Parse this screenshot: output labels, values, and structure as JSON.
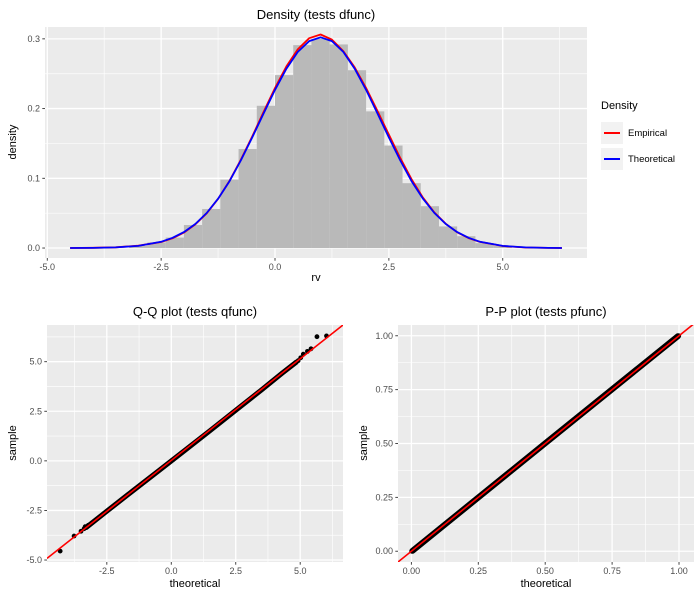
{
  "page": {
    "background": "#ffffff"
  },
  "theme": {
    "panel_bg": "#ebebeb",
    "grid_major": "#ffffff",
    "grid_minor": "#ffffff",
    "tick_color": "#333333",
    "tick_text": "#4d4d4d",
    "title_color": "#000000",
    "point_color": "#000000",
    "legend_key_bg": "#f2f2f2"
  },
  "chart_data": [
    {
      "id": "density",
      "type": "histogram+line",
      "title": "Density (tests dfunc)",
      "xlabel": "rv",
      "ylabel": "density",
      "xlim": [
        -5.05,
        6.85
      ],
      "ylim": [
        -0.0143,
        0.317
      ],
      "grid": true,
      "legend_position": "right",
      "x_ticks": {
        "values": [
          -5.0,
          -2.5,
          0.0,
          2.5,
          5.0
        ],
        "labels": [
          "-5.0",
          "-2.5",
          "0.0",
          "2.5",
          "5.0"
        ],
        "minor": [
          -3.75,
          -1.25,
          1.25,
          3.75,
          6.25
        ]
      },
      "y_ticks": {
        "values": [
          0.0,
          0.1,
          0.2,
          0.3
        ],
        "labels": [
          "0.0",
          "0.1",
          "0.2",
          "0.3"
        ],
        "minor": [
          0.05,
          0.15,
          0.25
        ]
      },
      "histogram": {
        "fill": "#b9b9b9",
        "binwidth": 0.4,
        "centers": [
          -3.0,
          -2.6,
          -2.2,
          -1.8,
          -1.4,
          -1.0,
          -0.6,
          -0.2,
          0.2,
          0.6,
          1.0,
          1.4,
          1.8,
          2.2,
          2.6,
          3.0,
          3.4,
          3.8,
          4.2,
          4.6,
          5.0
        ],
        "heights": [
          0.003,
          0.008,
          0.015,
          0.033,
          0.056,
          0.098,
          0.142,
          0.204,
          0.248,
          0.291,
          0.3,
          0.292,
          0.255,
          0.196,
          0.147,
          0.093,
          0.06,
          0.031,
          0.017,
          0.007,
          0.003
        ]
      },
      "series": [
        {
          "name": "Empirical",
          "color": "#ff0000",
          "x": [
            -4.5,
            -4.0,
            -3.5,
            -3.0,
            -2.5,
            -2.25,
            -2.0,
            -1.75,
            -1.5,
            -1.25,
            -1.0,
            -0.75,
            -0.5,
            -0.25,
            0.0,
            0.25,
            0.5,
            0.75,
            1.0,
            1.25,
            1.5,
            1.75,
            2.0,
            2.25,
            2.5,
            2.75,
            3.0,
            3.25,
            3.5,
            3.75,
            4.0,
            4.25,
            4.5,
            5.0,
            5.5,
            6.0,
            6.3
          ],
          "y": [
            0.0001,
            0.0003,
            0.001,
            0.0033,
            0.0087,
            0.014,
            0.0221,
            0.0339,
            0.0498,
            0.0706,
            0.0963,
            0.1266,
            0.16,
            0.1952,
            0.2295,
            0.2605,
            0.285,
            0.301,
            0.3062,
            0.299,
            0.2824,
            0.259,
            0.2295,
            0.1965,
            0.1625,
            0.129,
            0.0985,
            0.0722,
            0.051,
            0.0347,
            0.0226,
            0.0143,
            0.0088,
            0.0029,
            0.0008,
            0.0002,
            0.0001
          ]
        },
        {
          "name": "Theoretical",
          "color": "#0000ff",
          "x": [
            -4.5,
            -4.0,
            -3.5,
            -3.0,
            -2.5,
            -2.25,
            -2.0,
            -1.75,
            -1.5,
            -1.25,
            -1.0,
            -0.75,
            -0.5,
            -0.25,
            0.0,
            0.25,
            0.5,
            0.75,
            1.0,
            1.25,
            1.5,
            1.75,
            2.0,
            2.25,
            2.5,
            2.75,
            3.0,
            3.25,
            3.5,
            3.75,
            4.0,
            4.25,
            4.5,
            5.0,
            5.5,
            6.0,
            6.3
          ],
          "y": [
            0.0001,
            0.0002,
            0.0009,
            0.0031,
            0.009,
            0.0146,
            0.0228,
            0.0345,
            0.0503,
            0.0707,
            0.0959,
            0.1255,
            0.1585,
            0.193,
            0.2268,
            0.2572,
            0.2813,
            0.2968,
            0.3022,
            0.2968,
            0.2813,
            0.2572,
            0.2268,
            0.193,
            0.1585,
            0.1255,
            0.0959,
            0.0707,
            0.0503,
            0.0345,
            0.0228,
            0.0146,
            0.009,
            0.0031,
            0.0009,
            0.0002,
            0.0001
          ]
        }
      ],
      "legend": {
        "title": "Density",
        "entries": [
          {
            "label": "Empirical",
            "color": "#ff0000"
          },
          {
            "label": "Theoretical",
            "color": "#0000ff"
          }
        ]
      }
    },
    {
      "id": "qq",
      "type": "scatter",
      "title": "Q-Q plot (tests qfunc)",
      "xlabel": "theoretical",
      "ylabel": "sample",
      "xlim": [
        -4.82,
        6.66
      ],
      "ylim": [
        -5.1,
        6.85
      ],
      "grid": true,
      "x_ticks": {
        "values": [
          -2.5,
          0.0,
          2.5,
          5.0
        ],
        "labels": [
          "-2.5",
          "0.0",
          "2.5",
          "5.0"
        ],
        "minor": [
          -3.75,
          -1.25,
          1.25,
          3.75,
          6.25
        ]
      },
      "y_ticks": {
        "values": [
          -5.0,
          -2.5,
          0.0,
          2.5,
          5.0
        ],
        "labels": [
          "-5.0",
          "-2.5",
          "0.0",
          "2.5",
          "5.0"
        ],
        "minor": [
          -3.75,
          -1.25,
          1.25,
          3.75,
          6.25
        ]
      },
      "band": {
        "width": 5,
        "points": [
          [
            -3.3,
            -3.36
          ],
          [
            -2.5,
            -2.54
          ],
          [
            -1.5,
            -1.52
          ],
          [
            -0.5,
            -0.51
          ],
          [
            0.5,
            0.5
          ],
          [
            1.5,
            1.52
          ],
          [
            2.5,
            2.55
          ],
          [
            3.5,
            3.58
          ],
          [
            4.3,
            4.42
          ],
          [
            4.85,
            4.98
          ]
        ]
      },
      "points": [
        [
          -4.31,
          -4.55
        ],
        [
          -3.77,
          -3.79
        ],
        [
          -3.5,
          -3.55
        ],
        [
          -3.38,
          -3.42
        ],
        [
          -3.34,
          -3.32
        ],
        [
          -3.22,
          -3.25
        ],
        [
          4.92,
          5.05
        ],
        [
          5.02,
          5.2
        ],
        [
          5.12,
          5.38
        ],
        [
          5.28,
          5.52
        ],
        [
          5.42,
          5.65
        ],
        [
          5.65,
          6.26
        ],
        [
          6.02,
          6.3
        ]
      ],
      "ref_line": {
        "color": "#ff0000",
        "from": [
          -4.82,
          -4.92
        ],
        "to": [
          6.66,
          6.85
        ]
      }
    },
    {
      "id": "pp",
      "type": "scatter",
      "title": "P-P plot (tests pfunc)",
      "xlabel": "theoretical",
      "ylabel": "sample",
      "xlim": [
        -0.05,
        1.056
      ],
      "ylim": [
        -0.05,
        1.05
      ],
      "grid": true,
      "x_ticks": {
        "values": [
          0.0,
          0.25,
          0.5,
          0.75,
          1.0
        ],
        "labels": [
          "0.00",
          "0.25",
          "0.50",
          "0.75",
          "1.00"
        ],
        "minor": [
          0.125,
          0.375,
          0.625,
          0.875
        ]
      },
      "y_ticks": {
        "values": [
          0.0,
          0.25,
          0.5,
          0.75,
          1.0
        ],
        "labels": [
          "0.00",
          "0.25",
          "0.50",
          "0.75",
          "1.00"
        ],
        "minor": [
          0.125,
          0.375,
          0.625,
          0.875
        ]
      },
      "band": {
        "width": 6,
        "points": [
          [
            0.004,
            0.002
          ],
          [
            0.5,
            0.501
          ],
          [
            0.996,
            0.998
          ]
        ]
      },
      "points": [
        [
          0.001,
          0.0
        ],
        [
          0.006,
          0.003
        ],
        [
          0.994,
          0.997
        ],
        [
          0.999,
          1.0
        ]
      ],
      "ref_line": {
        "color": "#ff0000",
        "from": [
          -0.05,
          -0.05
        ],
        "to": [
          1.056,
          1.056
        ]
      }
    }
  ]
}
